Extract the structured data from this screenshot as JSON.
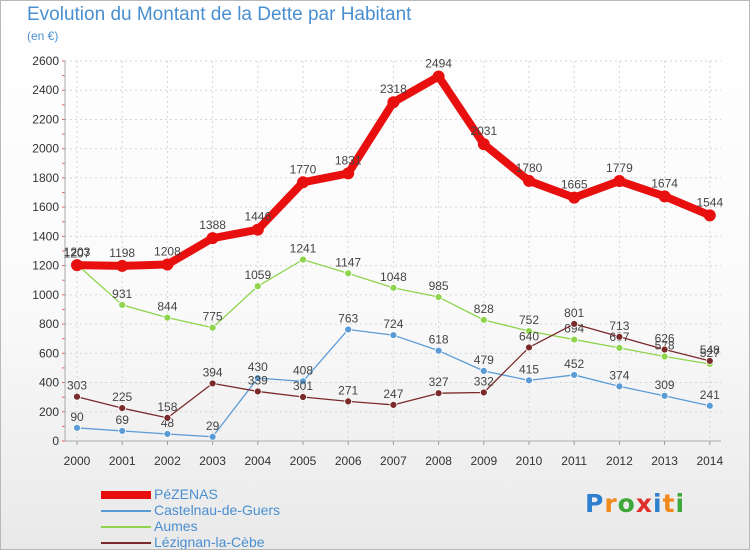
{
  "title": "Evolution du Montant de la Dette par Habitant",
  "subtitle": "(en €)",
  "logo": {
    "text": "Proxiti",
    "letter_colors": [
      "#2f7fd0",
      "#f08a1c",
      "#3fa83a",
      "#e0302a",
      "#2f7fd0",
      "#f08a1c",
      "#3fa83a"
    ]
  },
  "chart_data": {
    "type": "line",
    "title": "Evolution du Montant de la Dette par Habitant",
    "subtitle": "(en €)",
    "x": [
      2000,
      2001,
      2002,
      2003,
      2004,
      2005,
      2006,
      2007,
      2008,
      2009,
      2010,
      2011,
      2012,
      2013,
      2014
    ],
    "ylim": [
      0,
      2600
    ],
    "yticks": [
      0,
      200,
      400,
      600,
      800,
      1000,
      1200,
      1400,
      1600,
      1800,
      2000,
      2200,
      2400,
      2600
    ],
    "grid": true,
    "legend_position": "bottom-left",
    "series": [
      {
        "name": "Castelnau-de-Guers",
        "color": "#5b9bd5",
        "values": [
          90,
          69,
          48,
          29,
          430,
          408,
          763,
          724,
          618,
          479,
          415,
          452,
          374,
          309,
          241
        ],
        "highlight": false
      },
      {
        "name": "Aumes",
        "color": "#8ed44d",
        "values": [
          1207,
          931,
          844,
          775,
          1059,
          1241,
          1147,
          1048,
          985,
          828,
          752,
          694,
          637,
          578,
          527
        ],
        "highlight": false
      },
      {
        "name": "Lézignan-la-Cèbe",
        "color": "#7a2a2a",
        "values": [
          303,
          225,
          158,
          394,
          339,
          301,
          271,
          247,
          327,
          332,
          640,
          801,
          713,
          626,
          548
        ],
        "highlight": false
      },
      {
        "name": "PéZENAS",
        "color": "#e8100f",
        "values": [
          1203,
          1198,
          1208,
          1388,
          1446,
          1770,
          1831,
          2318,
          2494,
          2031,
          1780,
          1665,
          1779,
          1674,
          1544
        ],
        "highlight": true
      }
    ],
    "legend_order": [
      "PéZENAS",
      "Castelnau-de-Guers",
      "Aumes",
      "Lézignan-la-Cèbe"
    ]
  }
}
